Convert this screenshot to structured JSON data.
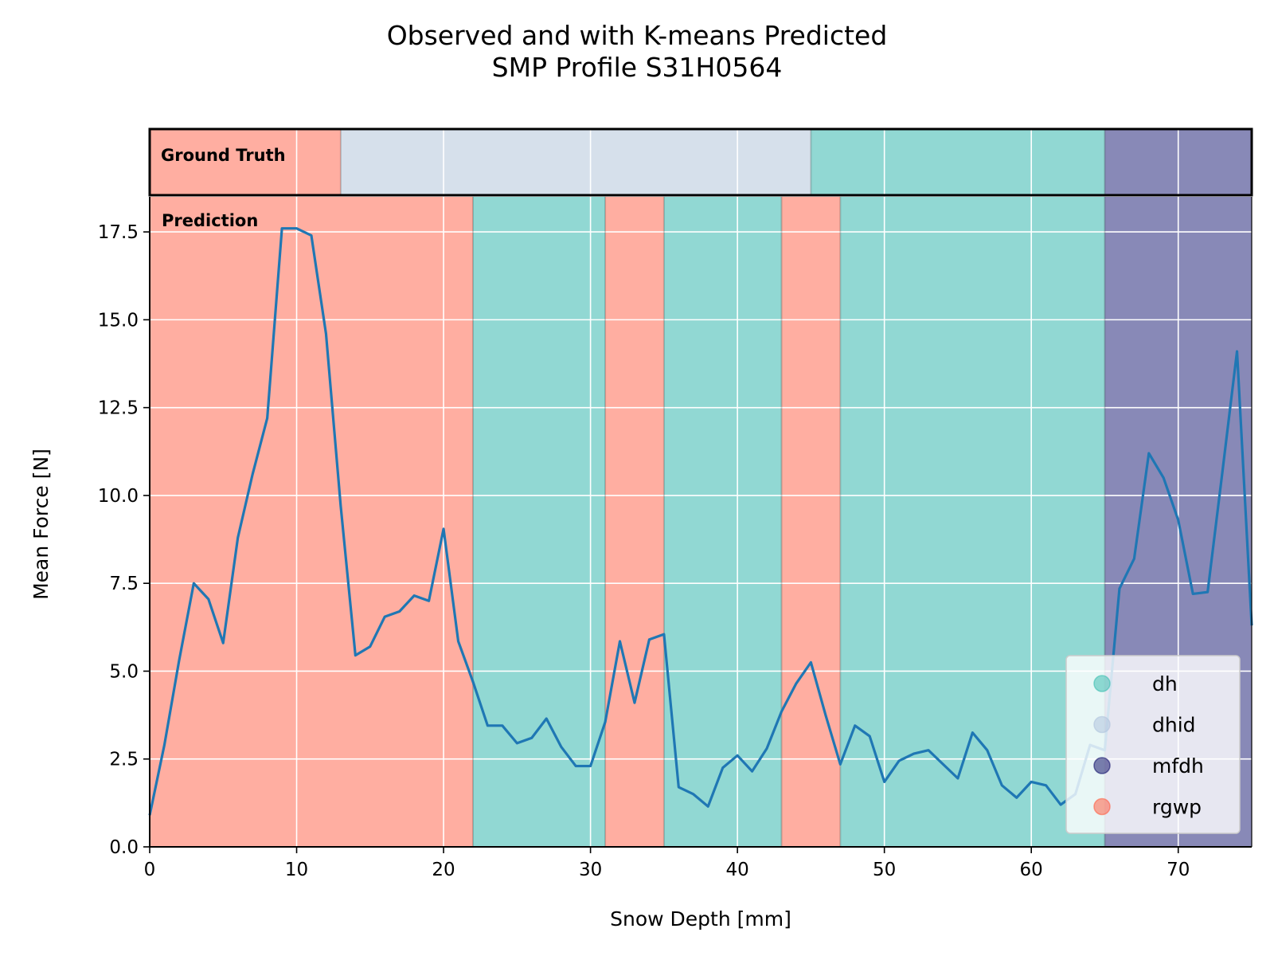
{
  "chart_data": {
    "type": "line",
    "title": "Observed and with K-means Predicted\nSMP Profile S31H0564",
    "xlabel": "Snow Depth [mm]",
    "ylabel": "Mean Force [N]",
    "xlim": [
      0,
      75
    ],
    "ylim": [
      0,
      18.5
    ],
    "xticks": [
      0,
      10,
      20,
      30,
      40,
      50,
      60,
      70
    ],
    "xtick_labels": [
      "0",
      "10",
      "20",
      "30",
      "40",
      "50",
      "60",
      "70"
    ],
    "yticks": [
      0,
      2.5,
      5,
      7.5,
      10,
      12.5,
      15,
      17.5
    ],
    "ytick_labels": [
      "0.0",
      "2.5",
      "5.0",
      "7.5",
      "10.0",
      "12.5",
      "15.0",
      "17.5"
    ],
    "grid": true,
    "line_color": "#1f77b4",
    "series": [
      {
        "x": [
          0,
          1,
          2,
          3,
          4,
          5,
          6,
          7,
          8,
          9,
          10,
          11,
          12,
          13,
          14,
          15,
          16,
          17,
          18,
          19,
          20,
          21,
          22,
          23,
          24,
          25,
          26,
          27,
          28,
          29,
          30,
          31,
          32,
          33,
          34,
          35,
          36,
          37,
          38,
          39,
          40,
          41,
          42,
          43,
          44,
          45,
          46,
          47,
          48,
          49,
          50,
          51,
          52,
          53,
          54,
          55,
          56,
          57,
          58,
          59,
          60,
          61,
          62,
          63,
          64,
          65,
          66,
          67,
          68,
          69,
          70,
          71,
          72,
          73,
          74,
          75
        ],
        "values": [
          0.9,
          2.9,
          5.3,
          7.5,
          7.05,
          5.8,
          8.8,
          10.6,
          12.2,
          17.6,
          17.6,
          17.4,
          14.6,
          9.7,
          5.45,
          5.7,
          6.55,
          6.7,
          7.15,
          7.0,
          9.05,
          5.85,
          4.7,
          3.45,
          3.45,
          2.95,
          3.1,
          3.65,
          2.85,
          2.3,
          2.3,
          3.55,
          5.85,
          4.1,
          5.9,
          6.05,
          1.7,
          1.5,
          1.15,
          2.25,
          2.6,
          2.15,
          2.8,
          3.85,
          4.65,
          5.25,
          3.75,
          2.35,
          3.45,
          3.15,
          1.85,
          2.45,
          2.65,
          2.75,
          2.35,
          1.95,
          3.25,
          2.75,
          1.75,
          1.4,
          1.85,
          1.75,
          1.2,
          1.5,
          2.9,
          2.75,
          7.35,
          8.2,
          11.2,
          10.5,
          9.3,
          7.2,
          7.25,
          10.65,
          14.1,
          6.3
        ]
      }
    ],
    "ground_truth": {
      "label": "Ground Truth",
      "segments": [
        {
          "start": 0,
          "end": 13,
          "class": "rgwp"
        },
        {
          "start": 13,
          "end": 45,
          "class": "dhid"
        },
        {
          "start": 45,
          "end": 65,
          "class": "dh"
        },
        {
          "start": 65,
          "end": 75,
          "class": "mfdh"
        }
      ]
    },
    "prediction": {
      "label": "Prediction",
      "segments": [
        {
          "start": 0,
          "end": 22,
          "class": "rgwp"
        },
        {
          "start": 22,
          "end": 31,
          "class": "dh"
        },
        {
          "start": 31,
          "end": 35,
          "class": "rgwp"
        },
        {
          "start": 35,
          "end": 43,
          "class": "dh"
        },
        {
          "start": 43,
          "end": 47,
          "class": "rgwp"
        },
        {
          "start": 47,
          "end": 65,
          "class": "dh"
        },
        {
          "start": 65,
          "end": 75,
          "class": "mfdh"
        }
      ]
    },
    "legend": {
      "placement": "lower-right",
      "entries": [
        {
          "name": "dh",
          "color": "#40bfb3"
        },
        {
          "name": "dhid",
          "color": "#b0c4de"
        },
        {
          "name": "mfdh",
          "color": "#191970"
        },
        {
          "name": "rgwp",
          "color": "#ff6347"
        }
      ]
    },
    "class_colors": {
      "dh": "#91d8d3",
      "dhid": "#d6e0eb",
      "mfdh": "#8889b7",
      "rgwp": "#ffaea1"
    }
  }
}
